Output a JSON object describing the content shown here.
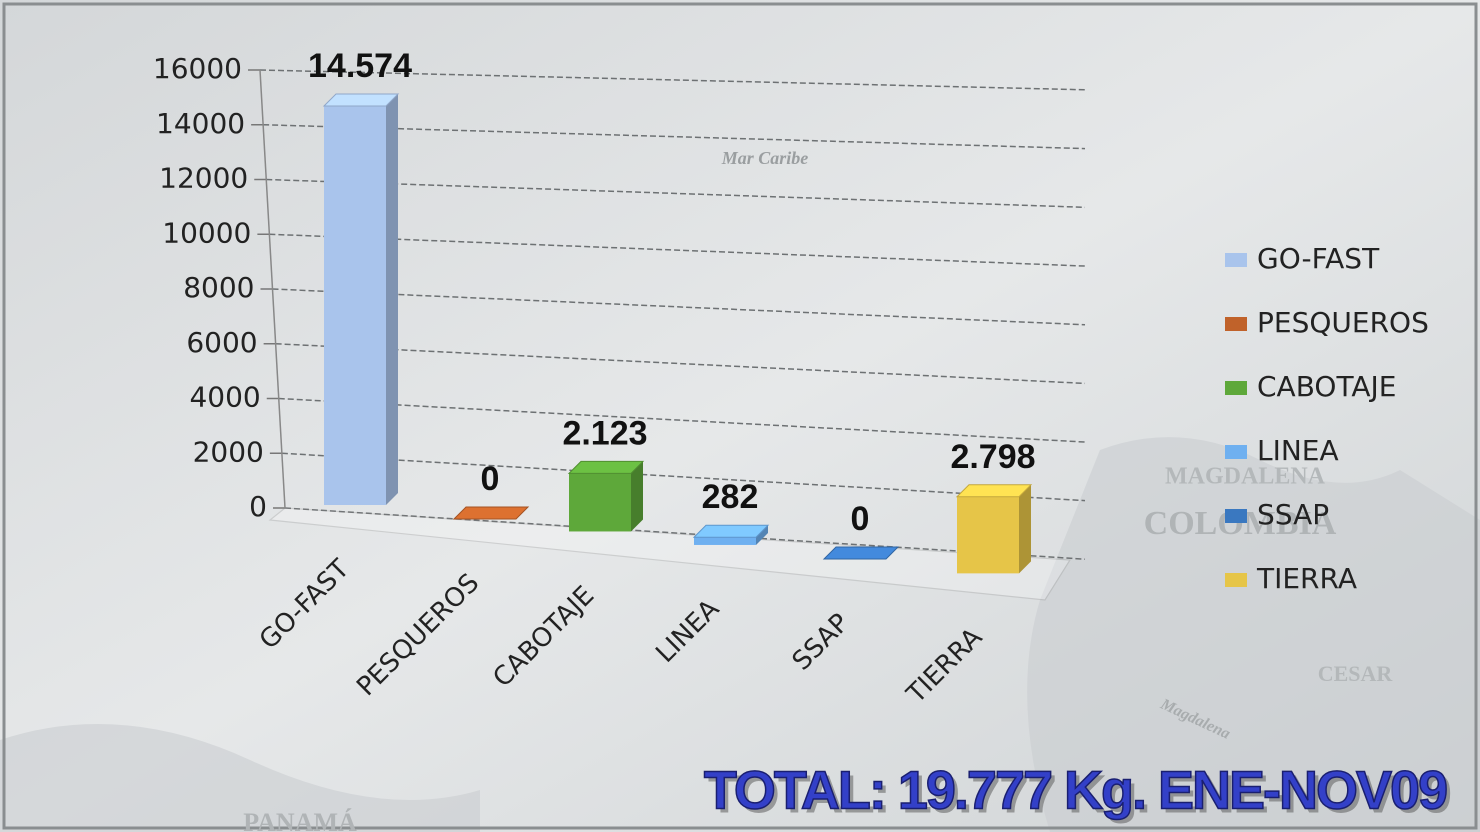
{
  "chart_data": {
    "type": "bar",
    "categories": [
      "GO-FAST",
      "PESQUEROS",
      "CABOTAJE",
      "LINEA",
      "SSAP",
      "TIERRA"
    ],
    "values": [
      14574,
      0,
      2123,
      282,
      0,
      2798
    ],
    "value_labels": [
      "14.574",
      "0",
      "2.123",
      "282",
      "0",
      "2.798"
    ],
    "colors": [
      "#a9c4ec",
      "#c0622a",
      "#5ea83a",
      "#6fb0f0",
      "#3a78c0",
      "#e6c548"
    ],
    "ylim": [
      0,
      16000
    ],
    "yticks": [
      0,
      2000,
      4000,
      6000,
      8000,
      10000,
      12000,
      14000,
      16000
    ],
    "grid": true,
    "legend": "right",
    "annotation": "TOTAL: 19.777 Kg. ENE-NOV09",
    "map_labels": [
      "Mar Caribe",
      "MAGDALENA",
      "COLOMBIA",
      "CESAR",
      "Magdalena",
      "PANAMÁ"
    ]
  }
}
